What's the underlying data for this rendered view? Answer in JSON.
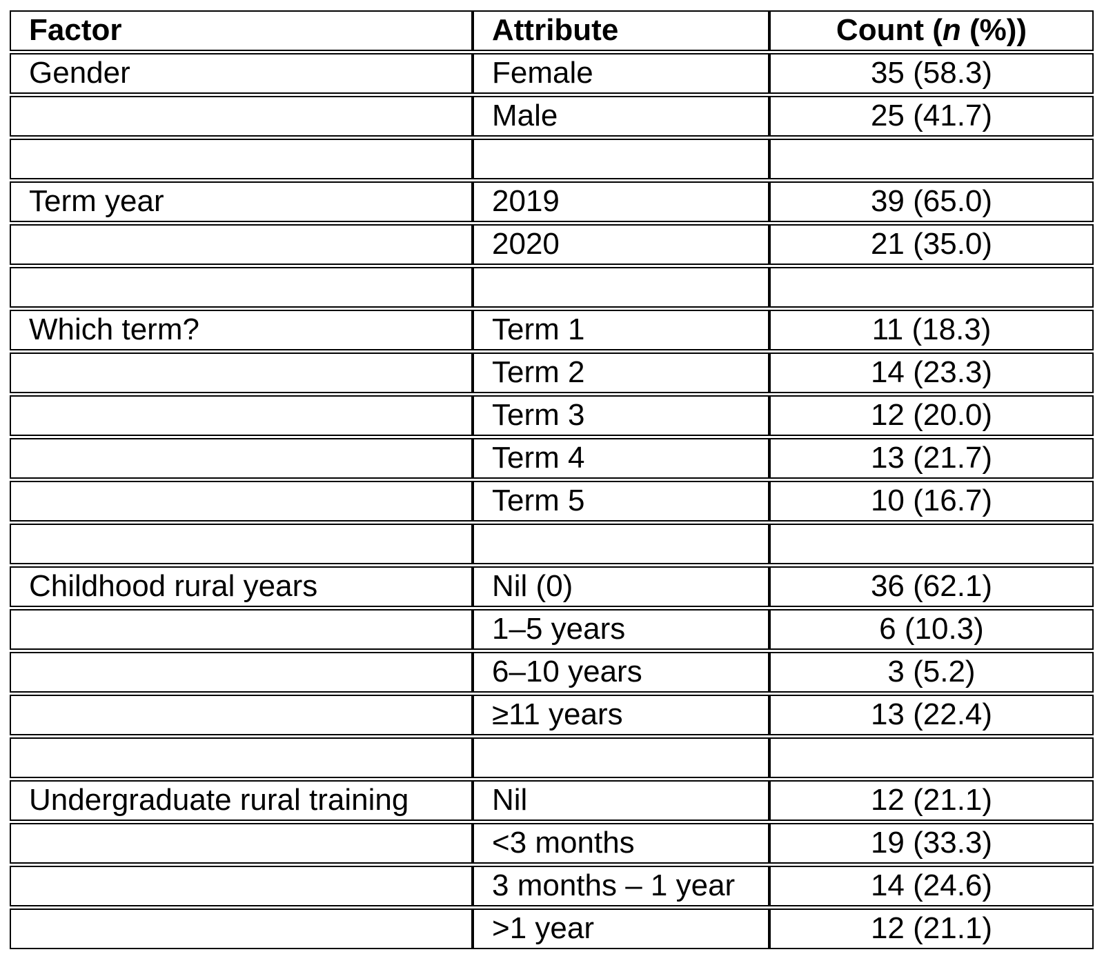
{
  "chart_data": {
    "type": "table",
    "columns": [
      "Factor",
      "Attribute",
      "Count (n (%))"
    ],
    "header": {
      "factor": "Factor",
      "attribute": "Attribute",
      "count_prefix": "Count (",
      "count_italic": "n",
      "count_suffix": " (%))"
    },
    "rows": [
      {
        "factor": "Gender",
        "attribute": "Female",
        "count": "35 (58.3)",
        "n": 35,
        "pct": 58.3
      },
      {
        "factor": "",
        "attribute": "Male",
        "count": "25 (41.7)",
        "n": 25,
        "pct": 41.7
      },
      {
        "spacer": true
      },
      {
        "factor": "Term year",
        "attribute": "2019",
        "count": "39 (65.0)",
        "n": 39,
        "pct": 65.0
      },
      {
        "factor": "",
        "attribute": "2020",
        "count": "21 (35.0)",
        "n": 21,
        "pct": 35.0
      },
      {
        "spacer": true
      },
      {
        "factor": "Which term?",
        "attribute": "Term 1",
        "count": "11 (18.3)",
        "n": 11,
        "pct": 18.3
      },
      {
        "factor": "",
        "attribute": "Term 2",
        "count": "14 (23.3)",
        "n": 14,
        "pct": 23.3
      },
      {
        "factor": "",
        "attribute": "Term 3",
        "count": "12 (20.0)",
        "n": 12,
        "pct": 20.0
      },
      {
        "factor": "",
        "attribute": "Term 4",
        "count": "13 (21.7)",
        "n": 13,
        "pct": 21.7
      },
      {
        "factor": "",
        "attribute": "Term 5",
        "count": "10 (16.7)",
        "n": 10,
        "pct": 16.7
      },
      {
        "spacer": true
      },
      {
        "factor": "Childhood rural years",
        "attribute": "Nil (0)",
        "count": "36 (62.1)",
        "n": 36,
        "pct": 62.1
      },
      {
        "factor": "",
        "attribute": "1–5 years",
        "count": "6 (10.3)",
        "n": 6,
        "pct": 10.3
      },
      {
        "factor": "",
        "attribute": "6–10 years",
        "count": "3 (5.2)",
        "n": 3,
        "pct": 5.2
      },
      {
        "factor": "",
        "attribute": "≥11 years",
        "count": "13 (22.4)",
        "n": 13,
        "pct": 22.4
      },
      {
        "spacer": true
      },
      {
        "factor": "Undergraduate rural training",
        "attribute": "Nil",
        "count": "12 (21.1)",
        "n": 12,
        "pct": 21.1
      },
      {
        "factor": "",
        "attribute": "<3 months",
        "count": "19 (33.3)",
        "n": 19,
        "pct": 33.3
      },
      {
        "factor": "",
        "attribute": "3 months – 1 year",
        "count": "14 (24.6)",
        "n": 14,
        "pct": 24.6
      },
      {
        "factor": "",
        "attribute": ">1 year",
        "count": "12 (21.1)",
        "n": 12,
        "pct": 21.1
      }
    ]
  },
  "colors": {
    "border": "#000000",
    "background": "#ffffff",
    "text": "#000000"
  }
}
